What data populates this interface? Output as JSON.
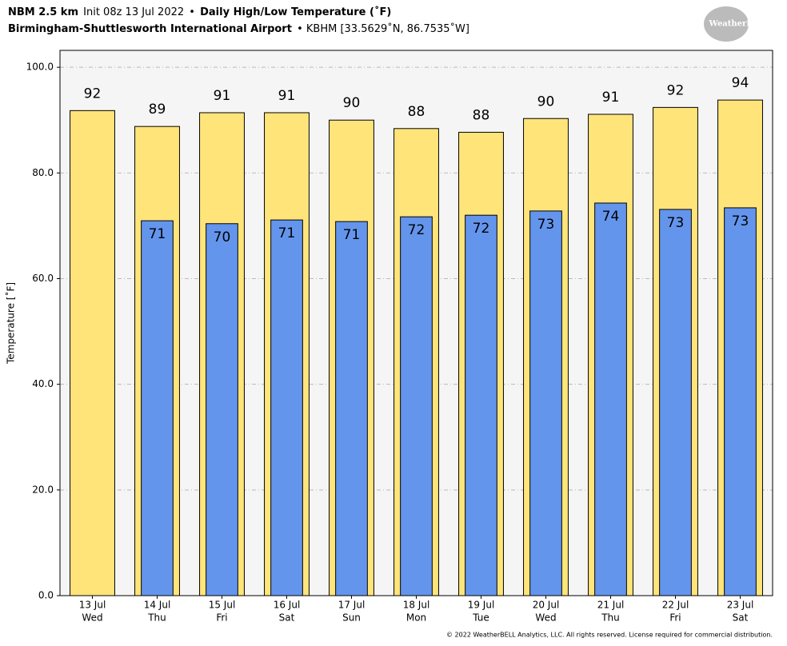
{
  "chart_data": {
    "type": "bar",
    "title_parts": [
      "NBM 2.5 km",
      "Init 08z 13 Jul 2022",
      "•",
      "Daily High/Low Temperature (˚F)"
    ],
    "subtitle_parts": [
      "Birmingham-Shuttlesworth International Airport",
      "• KBHM [33.5629˚N, 86.7535˚W]"
    ],
    "logo": "WeatherBELL",
    "ylabel": "Temperature [˚F]",
    "footer": "© 2022 WeatherBELL Analytics, LLC. All rights reserved. License required for commercial distribution.",
    "categories": [
      "13 Jul",
      "14 Jul",
      "15 Jul",
      "16 Jul",
      "17 Jul",
      "18 Jul",
      "19 Jul",
      "20 Jul",
      "21 Jul",
      "22 Jul",
      "23 Jul"
    ],
    "weekdays": [
      "Wed",
      "Thu",
      "Fri",
      "Sat",
      "Sun",
      "Mon",
      "Tue",
      "Wed",
      "Thu",
      "Fri",
      "Sat"
    ],
    "series": [
      {
        "name": "High",
        "color": "#ffe47a",
        "values": [
          91.8,
          88.8,
          91.4,
          91.4,
          90.0,
          88.4,
          87.7,
          90.3,
          91.1,
          92.4,
          93.8
        ],
        "value_labels": [
          "92",
          "89",
          "91",
          "91",
          "90",
          "88",
          "88",
          "90",
          "91",
          "92",
          "94"
        ]
      },
      {
        "name": "Low",
        "color": "#6495ed",
        "values": [
          null,
          70.95,
          70.4,
          71.1,
          70.8,
          71.7,
          72.0,
          72.8,
          74.3,
          73.1,
          73.4
        ],
        "value_labels": [
          null,
          "71",
          "70",
          "71",
          "71",
          "72",
          "72",
          "73",
          "74",
          "73",
          "73"
        ]
      }
    ],
    "ylim": [
      0,
      103.2
    ],
    "yticks": [
      {
        "value": 0,
        "label": "0.0"
      },
      {
        "value": 20,
        "label": "20.0"
      },
      {
        "value": 40,
        "label": "40.0"
      },
      {
        "value": 60,
        "label": "60.0"
      },
      {
        "value": 80,
        "label": "80.0"
      },
      {
        "value": 100,
        "label": "100.0"
      }
    ],
    "grid": true
  }
}
